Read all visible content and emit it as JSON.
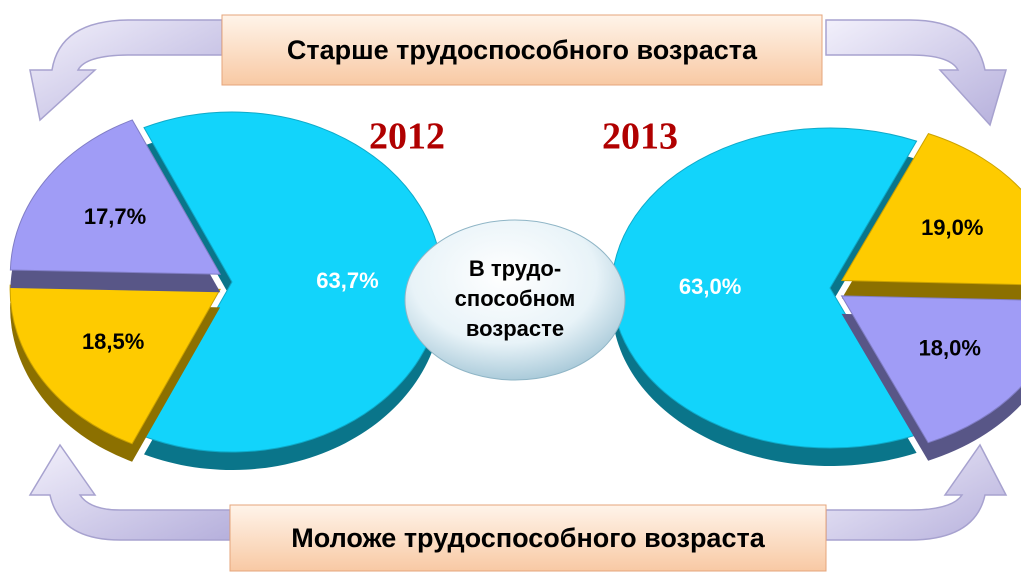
{
  "header": {
    "older": "Старше трудоспособного возраста",
    "younger": "Моложе трудоспособного возраста",
    "working": [
      "В трудо-",
      "способном",
      "возрасте"
    ]
  },
  "chart_data": [
    {
      "type": "pie",
      "title": "2012",
      "values": [
        63.7,
        18.5,
        17.7
      ],
      "value_labels": [
        "63,7%",
        "18,5%",
        "17,7%"
      ],
      "colors": [
        "#12d4fb",
        "#fecb00",
        "#a09cf6"
      ]
    },
    {
      "type": "pie",
      "title": "2013",
      "values": [
        63.0,
        19.0,
        18.0
      ],
      "value_labels": [
        "63,0%",
        "19,0%",
        "18,0%"
      ],
      "colors": [
        "#12d4fb",
        "#fecb00",
        "#a09cf6"
      ]
    }
  ]
}
